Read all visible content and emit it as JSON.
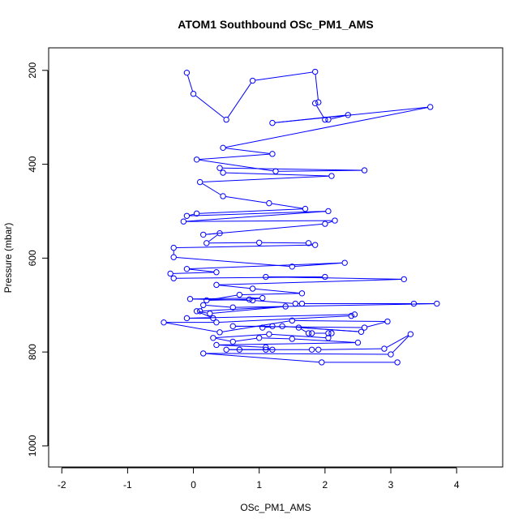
{
  "chart_data": {
    "type": "scatter",
    "title": "ATOM1 Southbound OSc_PM1_AMS",
    "xlabel": "OSc_PM1_AMS",
    "ylabel": "Pressure (mbar)",
    "xlim": [
      -2.2,
      4.7
    ],
    "ylim": [
      1045,
      152
    ],
    "y_reversed": true,
    "x_ticks": [
      -2,
      -1,
      0,
      1,
      2,
      3,
      4
    ],
    "y_ticks": [
      200,
      400,
      600,
      800,
      1000
    ],
    "series": [
      {
        "style": "points-and-lines",
        "color": "#0000ff",
        "points": [
          [
            -0.1,
            205
          ],
          [
            0.0,
            250
          ],
          [
            0.5,
            305
          ],
          [
            0.9,
            222
          ],
          [
            1.85,
            203
          ],
          [
            1.9,
            268
          ],
          [
            1.85,
            270
          ],
          [
            2.0,
            305
          ],
          [
            2.05,
            305
          ],
          [
            2.35,
            295
          ],
          [
            1.2,
            312
          ],
          [
            3.6,
            278
          ],
          [
            0.45,
            365
          ],
          [
            1.2,
            378
          ],
          [
            0.05,
            390
          ],
          [
            1.25,
            415
          ],
          [
            2.6,
            413
          ],
          [
            0.4,
            408
          ],
          [
            0.45,
            418
          ],
          [
            2.1,
            425
          ],
          [
            0.1,
            438
          ],
          [
            0.45,
            468
          ],
          [
            1.15,
            483
          ],
          [
            1.7,
            495
          ],
          [
            0.05,
            505
          ],
          [
            -0.1,
            510
          ],
          [
            2.05,
            500
          ],
          [
            -0.15,
            522
          ],
          [
            2.15,
            520
          ],
          [
            2.0,
            527
          ],
          [
            0.15,
            550
          ],
          [
            0.4,
            547
          ],
          [
            0.2,
            568
          ],
          [
            1.0,
            567
          ],
          [
            1.75,
            568
          ],
          [
            1.85,
            572
          ],
          [
            -0.3,
            578
          ],
          [
            -0.3,
            598
          ],
          [
            1.5,
            618
          ],
          [
            2.3,
            610
          ],
          [
            -0.1,
            623
          ],
          [
            0.35,
            630
          ],
          [
            -0.35,
            633
          ],
          [
            -0.3,
            643
          ],
          [
            2.0,
            640
          ],
          [
            1.1,
            640
          ],
          [
            3.2,
            645
          ],
          [
            0.35,
            657
          ],
          [
            0.9,
            665
          ],
          [
            1.65,
            675
          ],
          [
            0.7,
            678
          ],
          [
            0.2,
            690
          ],
          [
            0.85,
            688
          ],
          [
            1.05,
            685
          ],
          [
            -0.05,
            687
          ],
          [
            0.9,
            690
          ],
          [
            1.55,
            697
          ],
          [
            1.65,
            697
          ],
          [
            3.35,
            697
          ],
          [
            3.7,
            697
          ],
          [
            0.6,
            705
          ],
          [
            0.15,
            700
          ],
          [
            0.1,
            713
          ],
          [
            1.4,
            703
          ],
          [
            0.25,
            718
          ],
          [
            0.05,
            713
          ],
          [
            0.3,
            728
          ],
          [
            -0.1,
            728
          ],
          [
            2.45,
            720
          ],
          [
            2.4,
            723
          ],
          [
            0.35,
            737
          ],
          [
            -0.45,
            737
          ],
          [
            0.4,
            758
          ],
          [
            1.5,
            733
          ],
          [
            2.95,
            735
          ],
          [
            2.6,
            748
          ],
          [
            0.6,
            745
          ],
          [
            1.2,
            745
          ],
          [
            1.05,
            748
          ],
          [
            1.35,
            745
          ],
          [
            2.55,
            757
          ],
          [
            1.6,
            748
          ],
          [
            1.75,
            760
          ],
          [
            1.8,
            760
          ],
          [
            2.05,
            760
          ],
          [
            2.1,
            760
          ],
          [
            2.05,
            770
          ],
          [
            1.15,
            762
          ],
          [
            0.3,
            770
          ],
          [
            0.6,
            778
          ],
          [
            1.0,
            770
          ],
          [
            1.5,
            772
          ],
          [
            2.5,
            780
          ],
          [
            0.35,
            785
          ],
          [
            1.1,
            790
          ],
          [
            1.2,
            795
          ],
          [
            0.5,
            795
          ],
          [
            0.7,
            795
          ],
          [
            1.1,
            795
          ],
          [
            1.8,
            795
          ],
          [
            1.9,
            795
          ],
          [
            2.9,
            793
          ],
          [
            3.3,
            762
          ],
          [
            3.0,
            805
          ],
          [
            0.15,
            803
          ],
          [
            1.95,
            822
          ],
          [
            3.1,
            822
          ]
        ]
      }
    ]
  }
}
